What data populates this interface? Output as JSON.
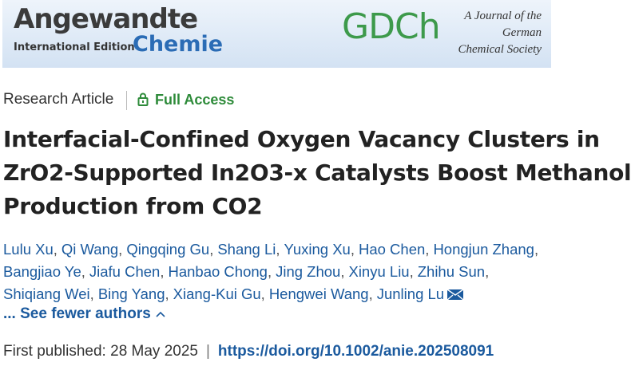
{
  "banner": {
    "journal": "Angewandte",
    "edition": "International Edition",
    "subtitle": "Chemie",
    "society_logo": "GDCh",
    "society_lines": [
      "A Journal of the",
      "German",
      "Chemical Society"
    ]
  },
  "article_type": "Research Article",
  "access": "Full Access",
  "title_lines": [
    "Interfacial-Confined Oxygen Vacancy Clusters in",
    "ZrO2-Supported In2O3-x Catalysts Boost Methanol",
    "Production from CO2"
  ],
  "author_separator": ",",
  "author_lines": [
    [
      "Lulu Xu",
      "Qi Wang",
      "Qingqing Gu",
      "Shang Li",
      "Yuxing Xu",
      "Hao Chen",
      "Hongjun Zhang"
    ],
    [
      "Bangjiao Ye",
      "Jiafu Chen",
      "Hanbao Chong",
      "Jing Zhou",
      "Xinyu Liu",
      "Zhihu Sun"
    ],
    [
      "Shiqiang Wei",
      "Bing Yang",
      "Xiang-Kui Gu",
      "Hengwei Wang",
      "Junling Lu"
    ]
  ],
  "toggle_authors": "... See fewer authors",
  "published_label": "First published:",
  "published_date": "28 May 2025",
  "divider": "|",
  "doi": "https://doi.org/10.1002/anie.202508091"
}
